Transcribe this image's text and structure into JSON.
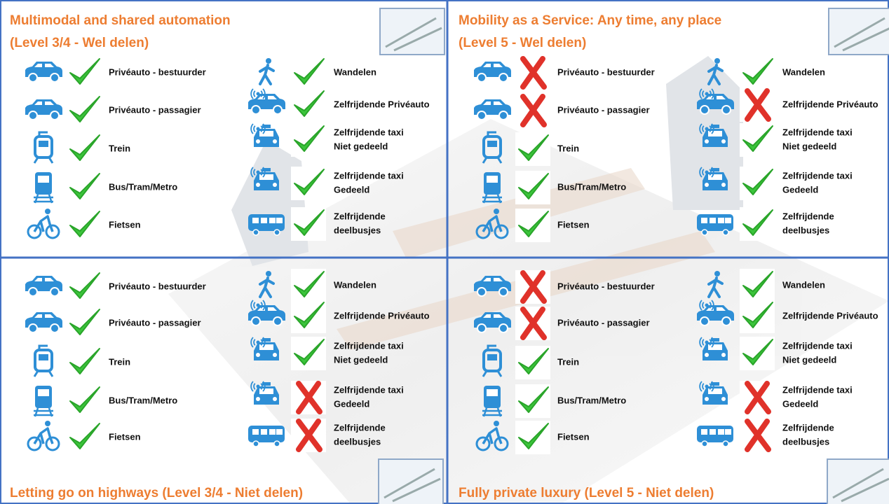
{
  "quadrants": [
    {
      "title": [
        "Multimodal and shared automation",
        "(Level 3/4 - Wel delen)"
      ],
      "left": [
        {
          "label": [
            "Privéauto - bestuurder"
          ],
          "ok": true
        },
        {
          "label": [
            "Privéauto - passagier"
          ],
          "ok": true
        },
        {
          "label": [
            "Trein"
          ],
          "ok": true
        },
        {
          "label": [
            "Bus/Tram/Metro"
          ],
          "ok": true
        },
        {
          "label": [
            "Fietsen"
          ],
          "ok": true
        }
      ],
      "right": [
        {
          "label": [
            "Wandelen"
          ],
          "ok": true
        },
        {
          "label": [
            "Zelfrijdende Privéauto"
          ],
          "ok": true
        },
        {
          "label": [
            "Zelfrijdende taxi",
            "Niet gedeeld"
          ],
          "ok": true
        },
        {
          "label": [
            "Zelfrijdende taxi",
            "Gedeeld"
          ],
          "ok": true
        },
        {
          "label": [
            "Zelfrijdende",
            "deelbusjes"
          ],
          "ok": true
        }
      ]
    },
    {
      "title": [
        "Mobility as a Service: Any time, any place",
        "(Level 5 - Wel delen)"
      ],
      "left": [
        {
          "label": [
            "Privéauto - bestuurder"
          ],
          "ok": false
        },
        {
          "label": [
            "Privéauto - passagier"
          ],
          "ok": false
        },
        {
          "label": [
            "Trein"
          ],
          "ok": true
        },
        {
          "label": [
            "Bus/Tram/Metro"
          ],
          "ok": true
        },
        {
          "label": [
            "Fietsen"
          ],
          "ok": true
        }
      ],
      "right": [
        {
          "label": [
            "Wandelen"
          ],
          "ok": true
        },
        {
          "label": [
            "Zelfrijdende Privéauto"
          ],
          "ok": false
        },
        {
          "label": [
            "Zelfrijdende taxi",
            "Niet gedeeld"
          ],
          "ok": true
        },
        {
          "label": [
            "Zelfrijdende taxi",
            "Gedeeld"
          ],
          "ok": true
        },
        {
          "label": [
            "Zelfrijdende",
            "deelbusjes"
          ],
          "ok": true
        }
      ]
    },
    {
      "title": [
        "Letting go on highways (Level 3/4 - Niet delen)"
      ],
      "left": [
        {
          "label": [
            "Privéauto - bestuurder"
          ],
          "ok": true
        },
        {
          "label": [
            "Privéauto - passagier"
          ],
          "ok": true
        },
        {
          "label": [
            "Trein"
          ],
          "ok": true
        },
        {
          "label": [
            "Bus/Tram/Metro"
          ],
          "ok": true
        },
        {
          "label": [
            "Fietsen"
          ],
          "ok": true
        }
      ],
      "right": [
        {
          "label": [
            "Wandelen"
          ],
          "ok": true
        },
        {
          "label": [
            "Zelfrijdende Privéauto"
          ],
          "ok": true
        },
        {
          "label": [
            "Zelfrijdende taxi",
            "Niet gedeeld"
          ],
          "ok": true
        },
        {
          "label": [
            "Zelfrijdende taxi",
            "Gedeeld"
          ],
          "ok": false
        },
        {
          "label": [
            "Zelfrijdende",
            "deelbusjes"
          ],
          "ok": false
        }
      ]
    },
    {
      "title": [
        "Fully private luxury (Level 5 - Niet delen)"
      ],
      "left": [
        {
          "label": [
            "Privéauto - bestuurder"
          ],
          "ok": false
        },
        {
          "label": [
            "Privéauto - passagier"
          ],
          "ok": false
        },
        {
          "label": [
            "Trein"
          ],
          "ok": true
        },
        {
          "label": [
            "Bus/Tram/Metro"
          ],
          "ok": true
        },
        {
          "label": [
            "Fietsen"
          ],
          "ok": true
        }
      ],
      "right": [
        {
          "label": [
            "Wandelen"
          ],
          "ok": true
        },
        {
          "label": [
            "Zelfrijdende Privéauto"
          ],
          "ok": true
        },
        {
          "label": [
            "Zelfrijdende taxi",
            "Niet gedeeld"
          ],
          "ok": true
        },
        {
          "label": [
            "Zelfrijdende taxi",
            "Gedeeld"
          ],
          "ok": false
        },
        {
          "label": [
            "Zelfrijdende",
            "deelbusjes"
          ],
          "ok": false
        }
      ]
    }
  ]
}
